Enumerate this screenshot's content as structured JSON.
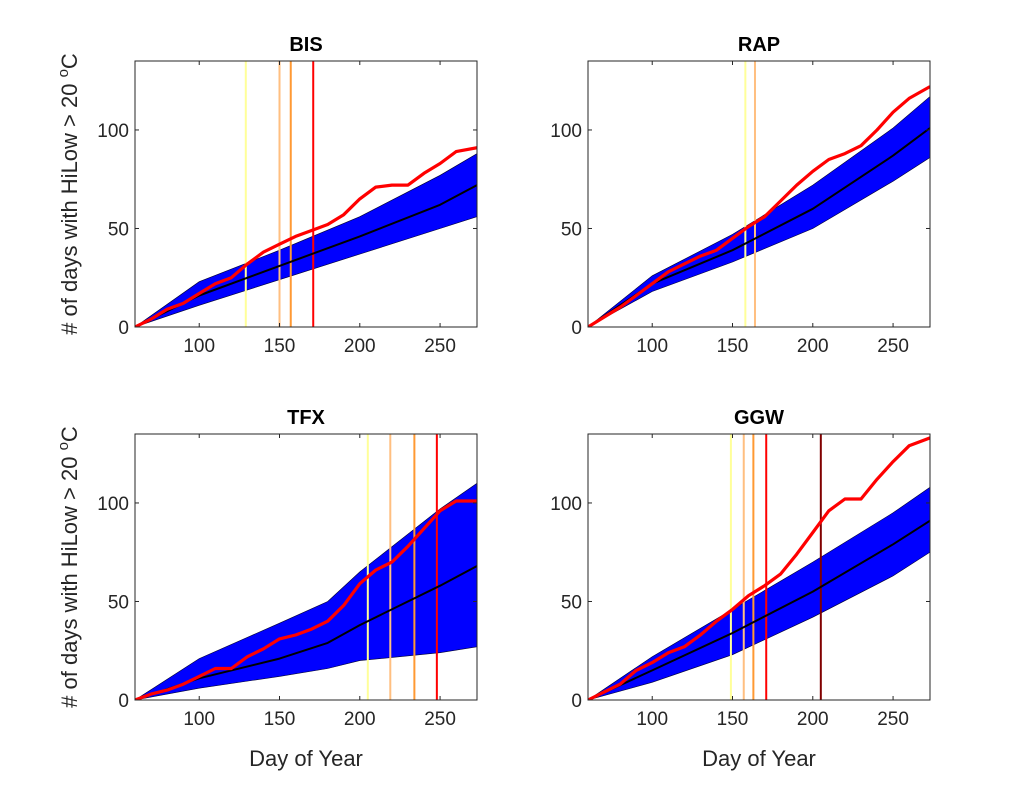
{
  "chart_data": [
    {
      "type": "line",
      "title": "BIS",
      "xlabel": "",
      "ylabel": "# of days with HiLow > 20 °C",
      "xlim": [
        60,
        273
      ],
      "ylim": [
        0,
        135
      ],
      "xticks": [
        100,
        150,
        200,
        250
      ],
      "yticks": [
        0,
        50,
        100
      ],
      "grid": false,
      "band": {
        "x": [
          60,
          100,
          150,
          200,
          250,
          273
        ],
        "lower": [
          0,
          11,
          24,
          37,
          50,
          56
        ],
        "upper": [
          0,
          23,
          39,
          56,
          77,
          88
        ]
      },
      "series": [
        {
          "role": "mean",
          "color": "#000000",
          "x": [
            60,
            100,
            150,
            200,
            250,
            273
          ],
          "y": [
            0,
            16,
            31,
            46,
            62,
            72
          ]
        },
        {
          "role": "observed",
          "color": "#ff0000",
          "x": [
            60,
            70,
            80,
            90,
            100,
            110,
            120,
            130,
            140,
            150,
            160,
            170,
            180,
            190,
            200,
            210,
            220,
            230,
            240,
            250,
            260,
            273
          ],
          "y": [
            0,
            4,
            9,
            12,
            17,
            22,
            25,
            32,
            38,
            42,
            46,
            49,
            52,
            57,
            65,
            71,
            72,
            72,
            78,
            83,
            89,
            91
          ]
        }
      ],
      "vlines": [
        {
          "x": 129,
          "color": "#ffff99"
        },
        {
          "x": 150,
          "color": "#ffbf80"
        },
        {
          "x": 157,
          "color": "#ff9933"
        },
        {
          "x": 171,
          "color": "#ff0000"
        }
      ]
    },
    {
      "type": "line",
      "title": "RAP",
      "xlabel": "",
      "ylabel": "",
      "xlim": [
        60,
        273
      ],
      "ylim": [
        0,
        135
      ],
      "xticks": [
        100,
        150,
        200,
        250
      ],
      "yticks": [
        0,
        50,
        100
      ],
      "grid": false,
      "band": {
        "x": [
          60,
          100,
          150,
          200,
          250,
          273
        ],
        "lower": [
          0,
          18,
          33,
          50,
          74,
          86
        ],
        "upper": [
          0,
          26,
          47,
          72,
          101,
          117
        ]
      },
      "series": [
        {
          "role": "mean",
          "color": "#000000",
          "x": [
            60,
            100,
            150,
            200,
            250,
            273
          ],
          "y": [
            0,
            22,
            39,
            60,
            87,
            101
          ]
        },
        {
          "role": "observed",
          "color": "#ff0000",
          "x": [
            60,
            70,
            80,
            90,
            100,
            110,
            120,
            130,
            140,
            150,
            160,
            170,
            180,
            190,
            200,
            210,
            220,
            230,
            240,
            250,
            260,
            273
          ],
          "y": [
            0,
            5,
            10,
            16,
            22,
            28,
            32,
            36,
            39,
            45,
            51,
            56,
            64,
            72,
            79,
            85,
            88,
            92,
            100,
            109,
            116,
            122
          ]
        }
      ],
      "vlines": [
        {
          "x": 158,
          "color": "#ffff99"
        },
        {
          "x": 164,
          "color": "#ffbf80"
        }
      ]
    },
    {
      "type": "line",
      "title": "TFX",
      "xlabel": "Day of Year",
      "ylabel": "# of days with HiLow > 20 °C",
      "xlim": [
        60,
        273
      ],
      "ylim": [
        0,
        135
      ],
      "xticks": [
        100,
        150,
        200,
        250
      ],
      "yticks": [
        0,
        50,
        100
      ],
      "grid": false,
      "band": {
        "x": [
          60,
          100,
          150,
          180,
          200,
          250,
          273
        ],
        "lower": [
          0,
          6,
          12,
          16,
          20,
          24,
          27
        ],
        "upper": [
          0,
          21,
          39,
          50,
          65,
          97,
          110
        ]
      },
      "series": [
        {
          "role": "mean",
          "color": "#000000",
          "x": [
            60,
            100,
            150,
            180,
            200,
            250,
            273
          ],
          "y": [
            0,
            11,
            21,
            29,
            38,
            58,
            68
          ]
        },
        {
          "role": "observed",
          "color": "#ff0000",
          "x": [
            60,
            70,
            80,
            90,
            100,
            110,
            120,
            130,
            140,
            150,
            160,
            170,
            180,
            190,
            200,
            210,
            220,
            230,
            240,
            250,
            260,
            273
          ],
          "y": [
            0,
            3,
            5,
            8,
            12,
            16,
            16,
            22,
            26,
            31,
            33,
            36,
            40,
            48,
            59,
            66,
            70,
            78,
            87,
            96,
            101,
            101
          ]
        }
      ],
      "vlines": [
        {
          "x": 205,
          "color": "#ffff99"
        },
        {
          "x": 219,
          "color": "#ffbf80"
        },
        {
          "x": 234,
          "color": "#ff9933"
        },
        {
          "x": 248,
          "color": "#ff0000"
        }
      ]
    },
    {
      "type": "line",
      "title": "GGW",
      "xlabel": "Day of Year",
      "ylabel": "",
      "xlim": [
        60,
        273
      ],
      "ylim": [
        0,
        135
      ],
      "xticks": [
        100,
        150,
        200,
        250
      ],
      "yticks": [
        0,
        50,
        100
      ],
      "grid": false,
      "band": {
        "x": [
          60,
          100,
          150,
          200,
          250,
          273
        ],
        "lower": [
          0,
          9,
          23,
          42,
          63,
          75
        ],
        "upper": [
          0,
          22,
          46,
          70,
          95,
          108
        ]
      },
      "series": [
        {
          "role": "mean",
          "color": "#000000",
          "x": [
            60,
            100,
            150,
            200,
            250,
            273
          ],
          "y": [
            0,
            15,
            34,
            55,
            79,
            91
          ]
        },
        {
          "role": "observed",
          "color": "#ff0000",
          "x": [
            60,
            70,
            80,
            90,
            100,
            110,
            120,
            130,
            140,
            150,
            160,
            170,
            180,
            190,
            200,
            210,
            220,
            230,
            240,
            250,
            260,
            273
          ],
          "y": [
            0,
            4,
            8,
            15,
            19,
            24,
            27,
            33,
            40,
            46,
            53,
            58,
            64,
            74,
            85,
            96,
            102,
            102,
            112,
            121,
            129,
            133
          ]
        }
      ],
      "vlines": [
        {
          "x": 149,
          "color": "#ffff99"
        },
        {
          "x": 157,
          "color": "#ffbf80"
        },
        {
          "x": 163,
          "color": "#ff9933"
        },
        {
          "x": 171,
          "color": "#ff0000"
        },
        {
          "x": 205,
          "color": "#800000"
        }
      ]
    }
  ],
  "style": {
    "band_color": "#0000ff",
    "axis_color": "#262626"
  }
}
